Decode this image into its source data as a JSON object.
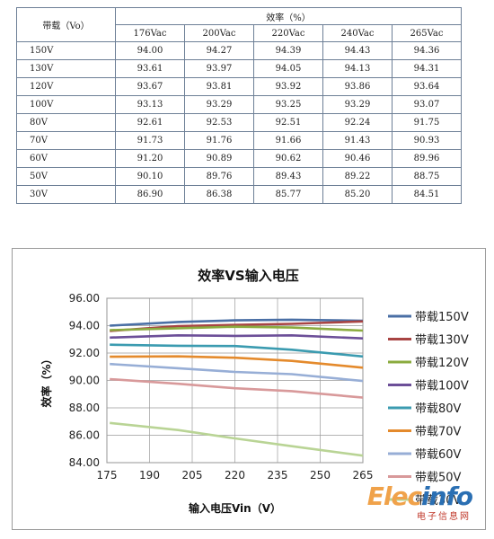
{
  "table": {
    "load_header": "带载（Vo）",
    "eff_header": "效率（%）",
    "columns": [
      "176Vac",
      "200Vac",
      "220Vac",
      "240Vac",
      "265Vac"
    ],
    "rows": [
      {
        "load": "150V",
        "values": [
          "94.00",
          "94.27",
          "94.39",
          "94.43",
          "94.36"
        ]
      },
      {
        "load": "130V",
        "values": [
          "93.61",
          "93.97",
          "94.05",
          "94.13",
          "94.31"
        ]
      },
      {
        "load": "120V",
        "values": [
          "93.67",
          "93.81",
          "93.92",
          "93.86",
          "93.64"
        ]
      },
      {
        "load": "100V",
        "values": [
          "93.13",
          "93.29",
          "93.25",
          "93.29",
          "93.07"
        ]
      },
      {
        "load": "80V",
        "values": [
          "92.61",
          "92.53",
          "92.51",
          "92.24",
          "91.75"
        ]
      },
      {
        "load": "70V",
        "values": [
          "91.73",
          "91.76",
          "91.66",
          "91.43",
          "90.93"
        ]
      },
      {
        "load": "60V",
        "values": [
          "91.20",
          "90.89",
          "90.62",
          "90.46",
          "89.96"
        ]
      },
      {
        "load": "50V",
        "values": [
          "90.10",
          "89.76",
          "89.43",
          "89.22",
          "88.75"
        ]
      },
      {
        "load": "30V",
        "values": [
          "86.90",
          "86.38",
          "85.77",
          "85.20",
          "84.51"
        ]
      }
    ]
  },
  "chart_data": {
    "type": "line",
    "title": "效率VS输入电压",
    "xlabel": "输入电压Vin（V）",
    "ylabel": "效率（%）",
    "x": [
      176,
      200,
      220,
      240,
      265
    ],
    "x_ticks": [
      "175",
      "190",
      "205",
      "220",
      "235",
      "250",
      "265"
    ],
    "y_ticks": [
      "84.00",
      "86.00",
      "88.00",
      "90.00",
      "92.00",
      "94.00",
      "96.00"
    ],
    "xlim": [
      175,
      265
    ],
    "ylim": [
      84,
      96
    ],
    "grid": true,
    "legend": "right",
    "series": [
      {
        "name": "带载150V",
        "color": "#4a6fa5",
        "values": [
          94.0,
          94.27,
          94.39,
          94.43,
          94.36
        ]
      },
      {
        "name": "带载130V",
        "color": "#a84443",
        "values": [
          93.61,
          93.97,
          94.05,
          94.13,
          94.31
        ]
      },
      {
        "name": "带载120V",
        "color": "#8bab3f",
        "values": [
          93.67,
          93.81,
          93.92,
          93.86,
          93.64
        ]
      },
      {
        "name": "带载100V",
        "color": "#6c4f98",
        "values": [
          93.13,
          93.29,
          93.25,
          93.29,
          93.07
        ]
      },
      {
        "name": "带载80V",
        "color": "#3b9bb0",
        "values": [
          92.61,
          92.53,
          92.51,
          92.24,
          91.75
        ]
      },
      {
        "name": "带载70V",
        "color": "#e48a2c",
        "values": [
          91.73,
          91.76,
          91.66,
          91.43,
          90.93
        ]
      },
      {
        "name": "带载60V",
        "color": "#97aed6",
        "values": [
          91.2,
          90.89,
          90.62,
          90.46,
          89.96
        ]
      },
      {
        "name": "带载50V",
        "color": "#d8999a",
        "values": [
          90.1,
          89.76,
          89.43,
          89.22,
          88.75
        ]
      },
      {
        "name": "带载30V",
        "color": "#b9d495",
        "values": [
          86.9,
          86.38,
          85.77,
          85.2,
          84.51
        ]
      }
    ]
  },
  "watermark": {
    "text_a": "Elec",
    "text_b": "info",
    "sub": "电子信息网"
  }
}
